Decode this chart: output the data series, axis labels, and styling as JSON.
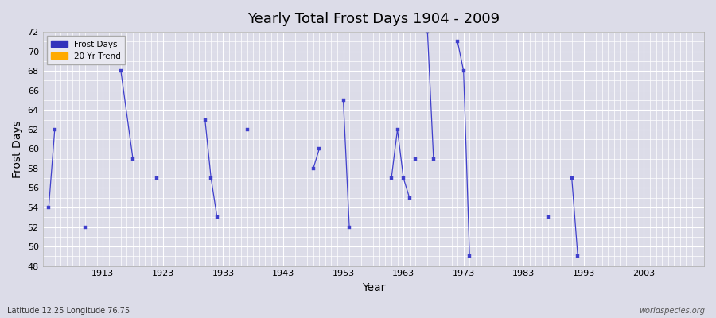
{
  "title": "Yearly Total Frost Days 1904 - 2009",
  "xlabel": "Year",
  "ylabel": "Frost Days",
  "xlim": [
    1903,
    2013
  ],
  "ylim": [
    48,
    72
  ],
  "yticks": [
    48,
    50,
    52,
    54,
    56,
    58,
    60,
    62,
    64,
    66,
    68,
    70,
    72
  ],
  "xticks": [
    1913,
    1923,
    1933,
    1943,
    1953,
    1963,
    1973,
    1983,
    1993,
    2003
  ],
  "bg_color": "#dcdce8",
  "plot_bg_color": "#dcdce8",
  "line_color": "#4040cc",
  "marker_color": "#4040cc",
  "grid_color": "#ffffff",
  "watermark": "worldspecies.org",
  "lat_lon_text": "Latitude 12.25 Longitude 76.75",
  "legend_frost_color": "#3333bb",
  "legend_trend_color": "#ffaa00",
  "frost_days_segments": [
    [
      [
        1904,
        54
      ],
      [
        1905,
        62
      ]
    ],
    [
      [
        1910,
        52
      ]
    ],
    [
      [
        1916,
        68
      ],
      [
        1918,
        59
      ]
    ],
    [
      [
        1922,
        57
      ]
    ],
    [
      [
        1930,
        63
      ],
      [
        1931,
        57
      ],
      [
        1932,
        53
      ]
    ],
    [
      [
        1937,
        62
      ]
    ],
    [
      [
        1948,
        58
      ],
      [
        1949,
        60
      ]
    ],
    [
      [
        1953,
        65
      ],
      [
        1954,
        52
      ]
    ],
    [
      [
        1961,
        57
      ],
      [
        1962,
        62
      ],
      [
        1963,
        57
      ],
      [
        1964,
        55
      ]
    ],
    [
      [
        1965,
        59
      ]
    ],
    [
      [
        1967,
        72
      ],
      [
        1968,
        59
      ]
    ],
    [
      [
        1972,
        71
      ],
      [
        1973,
        68
      ],
      [
        1974,
        49
      ]
    ],
    [
      [
        1987,
        53
      ]
    ],
    [
      [
        1991,
        57
      ],
      [
        1992,
        49
      ]
    ]
  ]
}
